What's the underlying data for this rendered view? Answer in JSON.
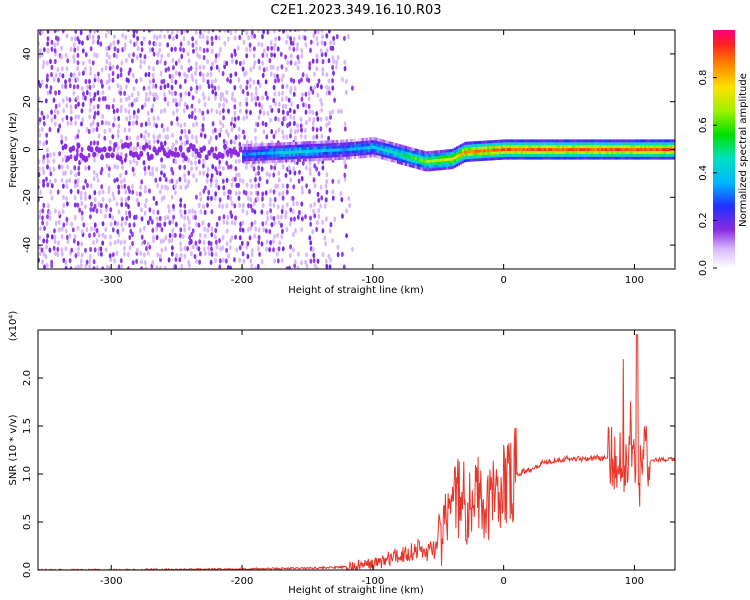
{
  "title": "C2E1.2023.349.16.10.R03",
  "chart_data": [
    {
      "type": "heatmap",
      "xlabel": "Height of straight line (km)",
      "ylabel": "Frequency (Hz)",
      "xlim": [
        -356,
        131
      ],
      "ylim": [
        -50,
        50
      ],
      "xticks": [
        -300,
        -200,
        -100,
        0,
        100
      ],
      "yticks": [
        -40,
        -20,
        0,
        20,
        40
      ],
      "colorbar": {
        "label": "Normalized spectral amplitude",
        "range": [
          0.0,
          1.0
        ],
        "ticks": [
          0.0,
          0.2,
          0.4,
          0.6,
          0.8
        ],
        "tick_labels": [
          "0.0",
          "0.2",
          "0.4",
          "0.6",
          "0.8"
        ]
      },
      "signal_track": [
        {
          "x": -200,
          "y": -2,
          "amp": 0.3
        },
        {
          "x": -160,
          "y": -1,
          "amp": 0.45
        },
        {
          "x": -120,
          "y": 0,
          "amp": 0.35
        },
        {
          "x": -100,
          "y": 1,
          "amp": 0.4
        },
        {
          "x": -80,
          "y": -2,
          "amp": 0.5
        },
        {
          "x": -60,
          "y": -5,
          "amp": 0.65
        },
        {
          "x": -40,
          "y": -4,
          "amp": 0.75
        },
        {
          "x": -30,
          "y": -1,
          "amp": 0.85
        },
        {
          "x": 0,
          "y": 0,
          "amp": 0.9
        },
        {
          "x": 50,
          "y": 0,
          "amp": 0.9
        },
        {
          "x": 100,
          "y": 0,
          "amp": 0.9
        },
        {
          "x": 131,
          "y": 0,
          "amp": 0.9
        }
      ],
      "noise_region": {
        "x_range": [
          -356,
          -115
        ],
        "y_range": [
          -50,
          50
        ],
        "amp": 0.15
      }
    },
    {
      "type": "line",
      "xlabel": "Height of straight line (km)",
      "ylabel": "SNR (10 * v/v)",
      "yscale_label": "(x10⁴)",
      "xlim": [
        -356,
        131
      ],
      "ylim": [
        0,
        2.5
      ],
      "xticks": [
        -300,
        -200,
        -100,
        0,
        100
      ],
      "yticks": [
        0.0,
        0.5,
        1.0,
        1.5,
        2.0
      ],
      "ytick_labels": [
        "0.0",
        "0.5",
        "1.0",
        "1.5",
        "2.0"
      ],
      "series": [
        {
          "color": "#e8362a",
          "x": [
            -356,
            -300,
            -200,
            -150,
            -120,
            -100,
            -80,
            -65,
            -60,
            -50,
            -45,
            -40,
            -35,
            -30,
            -25,
            -20,
            -15,
            -10,
            -5,
            0,
            10,
            20,
            30,
            40,
            50,
            60,
            70,
            80,
            85,
            90,
            95,
            100,
            103,
            106,
            110,
            120,
            131
          ],
          "y": [
            0.0,
            0.0,
            0.01,
            0.02,
            0.03,
            0.06,
            0.15,
            0.22,
            0.18,
            0.25,
            0.45,
            0.6,
            0.75,
            0.7,
            0.65,
            0.85,
            0.6,
            0.7,
            0.75,
            0.9,
            1.0,
            1.05,
            1.12,
            1.15,
            1.16,
            1.16,
            1.17,
            1.16,
            1.15,
            1.2,
            1.1,
            1.35,
            0.8,
            1.2,
            1.15,
            1.15,
            1.15
          ]
        }
      ]
    }
  ]
}
